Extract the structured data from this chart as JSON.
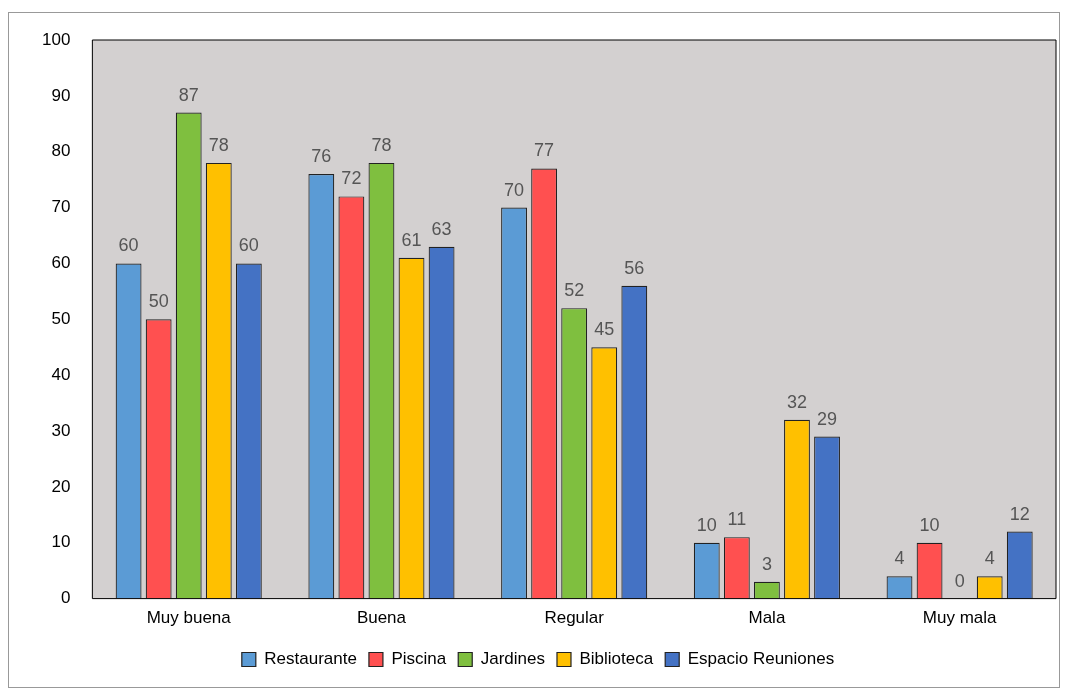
{
  "chart_data": {
    "type": "bar",
    "categories": [
      "Muy buena",
      "Buena",
      "Regular",
      "Mala",
      "Muy mala"
    ],
    "series": [
      {
        "name": "Restaurante",
        "color": "#5b9bd5",
        "values": [
          60,
          76,
          70,
          10,
          4
        ]
      },
      {
        "name": "Piscina",
        "color": "#ff5050",
        "values": [
          50,
          72,
          77,
          11,
          10
        ]
      },
      {
        "name": "Jardines",
        "color": "#7fbf3f",
        "values": [
          87,
          78,
          52,
          3,
          0
        ]
      },
      {
        "name": "Biblioteca",
        "color": "#ffc000",
        "values": [
          78,
          61,
          45,
          32,
          4
        ]
      },
      {
        "name": "Espacio Reuniones",
        "color": "#4472c4",
        "values": [
          60,
          63,
          56,
          29,
          12
        ]
      }
    ],
    "ylim": [
      0,
      100
    ],
    "yticks": [
      0,
      10,
      20,
      30,
      40,
      50,
      60,
      70,
      80,
      90,
      100
    ],
    "grid": false,
    "legend": "bottom",
    "data_labels": true
  }
}
